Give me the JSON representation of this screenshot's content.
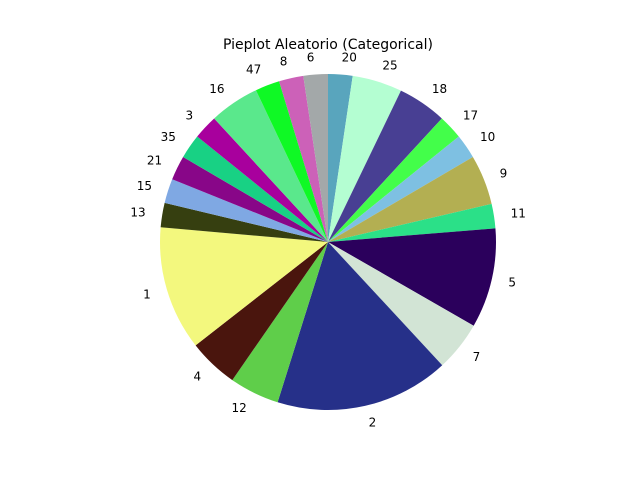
{
  "chart_data": {
    "type": "pie",
    "title": "Pieplot Aleatorio (Categorical)",
    "start_angle_deg": 90,
    "direction": "clockwise",
    "slices": [
      {
        "label": "20",
        "value": 2.4,
        "color": "#59a5bd"
      },
      {
        "label": "25",
        "value": 4.9,
        "color": "#b4fed2"
      },
      {
        "label": "18",
        "value": 4.8,
        "color": "#483f93"
      },
      {
        "label": "17",
        "value": 2.4,
        "color": "#43fe4a"
      },
      {
        "label": "10",
        "value": 2.4,
        "color": "#7ec0e2"
      },
      {
        "label": "9",
        "value": 4.9,
        "color": "#b3af52"
      },
      {
        "label": "11",
        "value": 2.4,
        "color": "#2be088"
      },
      {
        "label": "5",
        "value": 9.8,
        "color": "#2b005c"
      },
      {
        "label": "7",
        "value": 4.9,
        "color": "#d2e4d5"
      },
      {
        "label": "2",
        "value": 17.1,
        "color": "#263089"
      },
      {
        "label": "12",
        "value": 4.9,
        "color": "#5fce4a"
      },
      {
        "label": "4",
        "value": 4.9,
        "color": "#4a150d"
      },
      {
        "label": "1",
        "value": 12.2,
        "color": "#f3f87e"
      },
      {
        "label": "13",
        "value": 2.4,
        "color": "#363f10"
      },
      {
        "label": "15",
        "value": 2.4,
        "color": "#7fa8e3"
      },
      {
        "label": "21",
        "value": 2.4,
        "color": "#880688"
      },
      {
        "label": "35",
        "value": 2.4,
        "color": "#18d184"
      },
      {
        "label": "3",
        "value": 2.4,
        "color": "#a8009d"
      },
      {
        "label": "16",
        "value": 4.9,
        "color": "#5ae88c"
      },
      {
        "label": "47",
        "value": 2.4,
        "color": "#0ff925"
      },
      {
        "label": "8",
        "value": 2.4,
        "color": "#cc61b8"
      },
      {
        "label": "6",
        "value": 2.4,
        "color": "#a3a8a9"
      }
    ]
  }
}
